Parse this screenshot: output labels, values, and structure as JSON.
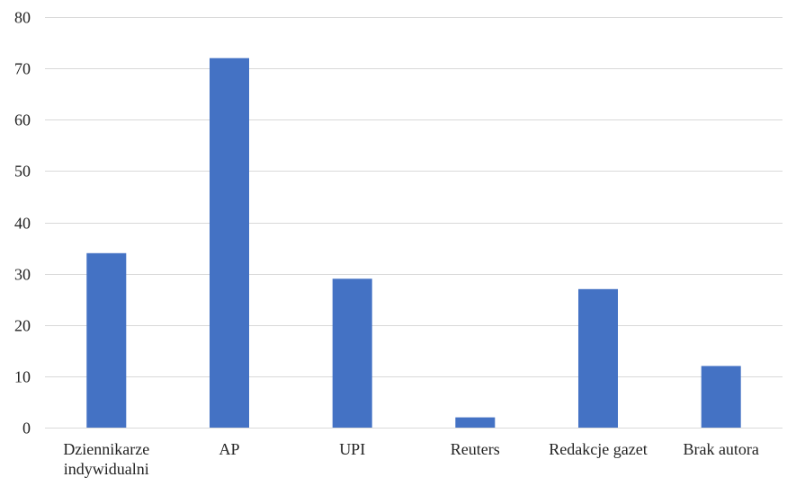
{
  "chart_data": {
    "type": "bar",
    "categories": [
      [
        "Dziennikarze",
        "indywidualni"
      ],
      [
        "AP"
      ],
      [
        "UPI"
      ],
      [
        "Reuters"
      ],
      [
        "Redakcje gazet"
      ],
      [
        "Brak autora"
      ]
    ],
    "values": [
      34,
      72,
      29,
      2,
      27,
      12
    ],
    "ylim": [
      0,
      80
    ],
    "yticks": [
      0,
      10,
      20,
      30,
      40,
      50,
      60,
      70,
      80
    ],
    "grid": true,
    "legend": "none",
    "bar_color": "#4472C4",
    "grid_color": "#D9D9D9"
  }
}
